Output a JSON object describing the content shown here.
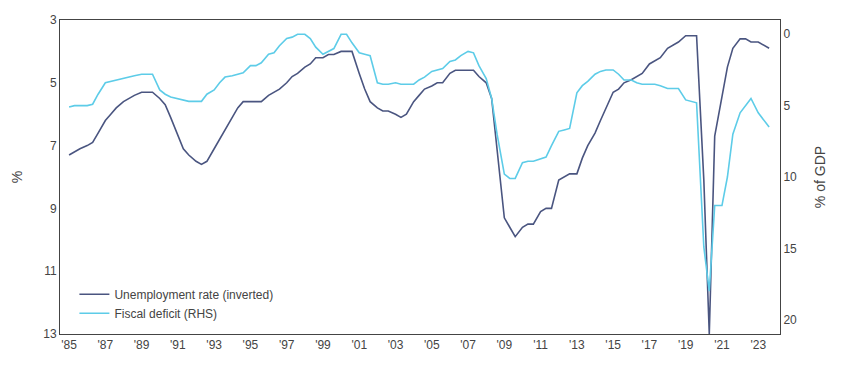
{
  "chart_data": {
    "type": "line",
    "ylabel": "%",
    "y2label": "% of GDP",
    "ylim": [
      13,
      3
    ],
    "yticks": [
      3,
      5,
      7,
      9,
      11,
      13
    ],
    "y2lim": [
      21,
      -1
    ],
    "y2ticks": [
      0,
      5,
      10,
      15,
      20
    ],
    "xlim": [
      1984.5,
      2024.2
    ],
    "xticks": [
      {
        "value": 1985,
        "label": "'85"
      },
      {
        "value": 1987,
        "label": "'87"
      },
      {
        "value": 1989,
        "label": "'89"
      },
      {
        "value": 1991,
        "label": "'91"
      },
      {
        "value": 1993,
        "label": "'93"
      },
      {
        "value": 1995,
        "label": "'95"
      },
      {
        "value": 1997,
        "label": "'97"
      },
      {
        "value": 1999,
        "label": "'99"
      },
      {
        "value": 2001,
        "label": "'01"
      },
      {
        "value": 2003,
        "label": "'03"
      },
      {
        "value": 2005,
        "label": "'05"
      },
      {
        "value": 2007,
        "label": "'07"
      },
      {
        "value": 2009,
        "label": "'09"
      },
      {
        "value": 2011,
        "label": "'11"
      },
      {
        "value": 2013,
        "label": "'13"
      },
      {
        "value": 2015,
        "label": "'15"
      },
      {
        "value": 2017,
        "label": "'17"
      },
      {
        "value": 2019,
        "label": "'19"
      },
      {
        "value": 2021,
        "label": "'21"
      },
      {
        "value": 2023,
        "label": "'23"
      }
    ],
    "grid": false,
    "legend": "lower left",
    "x": [
      1985.0,
      1985.3,
      1985.6,
      1986.0,
      1986.3,
      1986.6,
      1987.0,
      1987.3,
      1987.6,
      1988.0,
      1988.3,
      1988.6,
      1989.0,
      1989.3,
      1989.6,
      1990.0,
      1990.3,
      1990.6,
      1991.0,
      1991.3,
      1991.6,
      1992.0,
      1992.3,
      1992.6,
      1993.0,
      1993.3,
      1993.6,
      1994.0,
      1994.3,
      1994.6,
      1995.0,
      1995.3,
      1995.6,
      1996.0,
      1996.3,
      1996.6,
      1997.0,
      1997.3,
      1997.6,
      1998.0,
      1998.3,
      1998.6,
      1999.0,
      1999.3,
      1999.6,
      2000.0,
      2000.3,
      2000.6,
      2001.0,
      2001.3,
      2001.6,
      2002.0,
      2002.3,
      2002.6,
      2003.0,
      2003.3,
      2003.6,
      2004.0,
      2004.3,
      2004.6,
      2005.0,
      2005.3,
      2005.6,
      2006.0,
      2006.3,
      2006.6,
      2007.0,
      2007.3,
      2007.6,
      2008.0,
      2008.3,
      2008.6,
      2009.0,
      2009.3,
      2009.6,
      2010.0,
      2010.3,
      2010.6,
      2011.0,
      2011.3,
      2011.6,
      2012.0,
      2012.3,
      2012.6,
      2013.0,
      2013.3,
      2013.6,
      2014.0,
      2014.3,
      2014.6,
      2015.0,
      2015.3,
      2015.6,
      2016.0,
      2016.3,
      2016.6,
      2017.0,
      2017.3,
      2017.6,
      2018.0,
      2018.3,
      2018.6,
      2019.0,
      2019.3,
      2019.6,
      2020.0,
      2020.3,
      2020.6,
      2021.0,
      2021.3,
      2021.6,
      2022.0,
      2022.3,
      2022.6,
      2023.0,
      2023.3,
      2023.6
    ],
    "series": [
      {
        "name": "Unemployment rate (inverted)",
        "color": "#4a5580",
        "axis": "y",
        "values": [
          7.3,
          7.2,
          7.1,
          7.0,
          6.9,
          6.6,
          6.2,
          6.0,
          5.8,
          5.6,
          5.5,
          5.4,
          5.3,
          5.3,
          5.3,
          5.5,
          5.7,
          6.1,
          6.7,
          7.1,
          7.3,
          7.5,
          7.6,
          7.5,
          7.1,
          6.8,
          6.5,
          6.1,
          5.8,
          5.6,
          5.6,
          5.6,
          5.6,
          5.4,
          5.3,
          5.2,
          5.0,
          4.8,
          4.7,
          4.5,
          4.4,
          4.2,
          4.2,
          4.1,
          4.1,
          4.0,
          4.0,
          4.0,
          4.7,
          5.2,
          5.6,
          5.8,
          5.9,
          5.9,
          6.0,
          6.1,
          6.0,
          5.6,
          5.4,
          5.2,
          5.1,
          5.0,
          5.0,
          4.7,
          4.6,
          4.6,
          4.6,
          4.6,
          4.8,
          5.0,
          5.5,
          7.2,
          9.3,
          9.6,
          9.9,
          9.6,
          9.5,
          9.5,
          9.1,
          9.0,
          9.0,
          8.1,
          8.0,
          7.9,
          7.9,
          7.4,
          7.0,
          6.6,
          6.2,
          5.8,
          5.3,
          5.2,
          5.0,
          4.9,
          4.8,
          4.7,
          4.4,
          4.3,
          4.2,
          3.9,
          3.8,
          3.7,
          3.5,
          3.5,
          3.5,
          8.1,
          13.0,
          6.7,
          5.4,
          4.5,
          3.9,
          3.6,
          3.6,
          3.7,
          3.7,
          3.8,
          3.9
        ]
      },
      {
        "name": "Fiscal deficit (RHS)",
        "color": "#5dcce8",
        "axis": "y2",
        "values": [
          5.1,
          5.0,
          5.0,
          5.0,
          4.9,
          4.2,
          3.4,
          3.3,
          3.2,
          3.1,
          3.0,
          2.9,
          2.8,
          2.8,
          2.8,
          3.9,
          4.2,
          4.4,
          4.5,
          4.6,
          4.7,
          4.7,
          4.7,
          4.2,
          3.9,
          3.4,
          3.0,
          2.9,
          2.8,
          2.7,
          2.2,
          2.2,
          2.0,
          1.4,
          1.3,
          0.8,
          0.3,
          0.2,
          0.0,
          0.0,
          0.3,
          0.9,
          1.4,
          1.2,
          1.0,
          0.0,
          0.0,
          0.6,
          1.3,
          1.4,
          1.5,
          3.4,
          3.5,
          3.5,
          3.4,
          3.5,
          3.5,
          3.5,
          3.2,
          3.0,
          2.6,
          2.5,
          2.4,
          1.9,
          1.8,
          1.5,
          1.2,
          1.3,
          2.2,
          3.1,
          4.5,
          7.0,
          9.8,
          10.1,
          10.1,
          9.0,
          8.9,
          8.9,
          8.7,
          8.6,
          7.8,
          6.8,
          6.7,
          6.6,
          4.1,
          3.6,
          3.3,
          2.8,
          2.6,
          2.5,
          2.5,
          2.8,
          3.2,
          3.2,
          3.4,
          3.5,
          3.5,
          3.5,
          3.6,
          3.8,
          3.8,
          3.8,
          4.6,
          4.7,
          4.8,
          14.9,
          18.0,
          12.0,
          12.0,
          10.0,
          7.0,
          5.5,
          5.0,
          4.5,
          5.5,
          6.0,
          6.5
        ]
      }
    ]
  }
}
